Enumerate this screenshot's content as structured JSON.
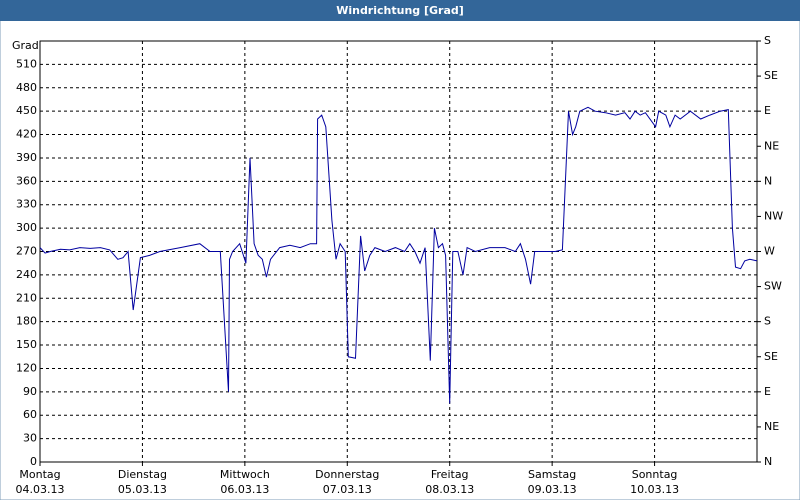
{
  "chart_data": {
    "type": "line",
    "title": "Windrichtung [Grad]",
    "ylabel": "Grad",
    "xlim": [
      0,
      7
    ],
    "xticks": [
      {
        "value": 0,
        "label": "Montag",
        "date": "04.03.13"
      },
      {
        "value": 1,
        "label": "Dienstag",
        "date": "05.03.13"
      },
      {
        "value": 2,
        "label": "Mittwoch",
        "date": "06.03.13"
      },
      {
        "value": 3,
        "label": "Donnerstag",
        "date": "07.03.13"
      },
      {
        "value": 4,
        "label": "Freitag",
        "date": "08.03.13"
      },
      {
        "value": 5,
        "label": "Samstag",
        "date": "09.03.13"
      },
      {
        "value": 6,
        "label": "Sonntag",
        "date": "10.03.13"
      }
    ],
    "ylim": [
      0,
      540
    ],
    "yticks": [
      0,
      30,
      60,
      90,
      120,
      150,
      180,
      210,
      240,
      270,
      300,
      330,
      360,
      390,
      420,
      450,
      480,
      510
    ],
    "y2lim": [
      0,
      540
    ],
    "y2ticks": [
      {
        "value": 0,
        "label": "N"
      },
      {
        "value": 45,
        "label": "NE"
      },
      {
        "value": 90,
        "label": "E"
      },
      {
        "value": 135,
        "label": "SE"
      },
      {
        "value": 180,
        "label": "S"
      },
      {
        "value": 225,
        "label": "SW"
      },
      {
        "value": 270,
        "label": "W"
      },
      {
        "value": 315,
        "label": "NW"
      },
      {
        "value": 360,
        "label": "N"
      },
      {
        "value": 405,
        "label": "NE"
      },
      {
        "value": 450,
        "label": "E"
      },
      {
        "value": 495,
        "label": "SE"
      },
      {
        "value": 540,
        "label": "S"
      }
    ],
    "grid": true,
    "x": [
      0,
      0.05,
      0.1,
      0.2,
      0.29,
      0.39,
      0.49,
      0.59,
      0.68,
      0.76,
      0.81,
      0.86,
      0.91,
      0.98,
      1.07,
      1.17,
      1.37,
      1.56,
      1.66,
      1.76,
      1.84,
      1.85,
      1.88,
      1.95,
      2.01,
      2.05,
      2.09,
      2.13,
      2.17,
      2.21,
      2.25,
      2.34,
      2.44,
      2.54,
      2.64,
      2.7,
      2.71,
      2.75,
      2.79,
      2.85,
      2.89,
      2.93,
      2.98,
      3.01,
      3.08,
      3.13,
      3.17,
      3.22,
      3.27,
      3.37,
      3.47,
      3.56,
      3.61,
      3.66,
      3.71,
      3.76,
      3.81,
      3.85,
      3.89,
      3.93,
      3.96,
      4.0,
      4.03,
      4.08,
      4.13,
      4.17,
      4.25,
      4.39,
      4.54,
      4.64,
      4.69,
      4.74,
      4.79,
      4.83,
      4.93,
      5.03,
      5.1,
      5.16,
      5.2,
      5.23,
      5.27,
      5.35,
      5.42,
      5.52,
      5.62,
      5.71,
      5.76,
      5.81,
      5.86,
      5.91,
      6.01,
      6.04,
      6.11,
      6.15,
      6.2,
      6.25,
      6.35,
      6.45,
      6.54,
      6.64,
      6.72,
      6.76,
      6.79,
      6.84,
      6.88,
      6.93,
      7.0
    ],
    "series": [
      {
        "name": "Windrichtung",
        "color": "#0000a0",
        "values": [
          275,
          268,
          270,
          273,
          272,
          275,
          274,
          275,
          272,
          260,
          262,
          270,
          195,
          262,
          265,
          270,
          275,
          280,
          270,
          270,
          90,
          260,
          270,
          280,
          255,
          390,
          280,
          265,
          260,
          237,
          260,
          275,
          278,
          275,
          280,
          280,
          440,
          445,
          430,
          310,
          260,
          280,
          270,
          135,
          133,
          290,
          245,
          265,
          275,
          270,
          275,
          270,
          280,
          270,
          255,
          275,
          130,
          300,
          275,
          280,
          265,
          75,
          270,
          270,
          240,
          275,
          270,
          275,
          275,
          270,
          280,
          260,
          228,
          270,
          270,
          270,
          272,
          450,
          420,
          430,
          450,
          455,
          450,
          448,
          445,
          448,
          440,
          450,
          445,
          448,
          430,
          450,
          445,
          430,
          445,
          440,
          450,
          440,
          445,
          450,
          452,
          300,
          250,
          248,
          258,
          260,
          258
        ]
      }
    ]
  }
}
